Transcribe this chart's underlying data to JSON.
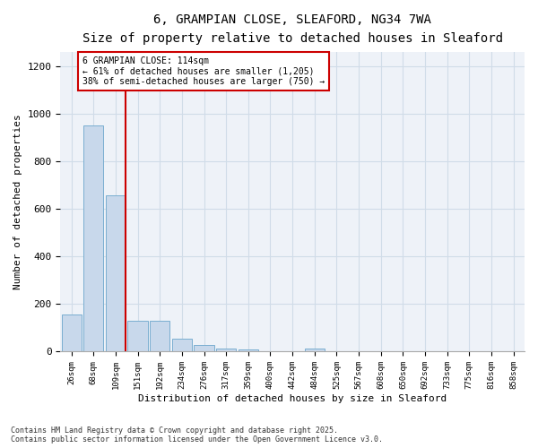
{
  "title_line1": "6, GRAMPIAN CLOSE, SLEAFORD, NG34 7WA",
  "title_line2": "Size of property relative to detached houses in Sleaford",
  "xlabel": "Distribution of detached houses by size in Sleaford",
  "ylabel": "Number of detached properties",
  "categories": [
    "26sqm",
    "68sqm",
    "109sqm",
    "151sqm",
    "192sqm",
    "234sqm",
    "276sqm",
    "317sqm",
    "359sqm",
    "400sqm",
    "442sqm",
    "484sqm",
    "525sqm",
    "567sqm",
    "608sqm",
    "650sqm",
    "692sqm",
    "733sqm",
    "775sqm",
    "816sqm",
    "858sqm"
  ],
  "values": [
    155,
    950,
    655,
    130,
    130,
    55,
    30,
    12,
    10,
    0,
    0,
    12,
    0,
    0,
    0,
    0,
    0,
    0,
    0,
    0,
    0
  ],
  "bar_color": "#c8d8eb",
  "bar_edge_color": "#7aaed0",
  "grid_color": "#d0dce8",
  "background_color": "#eef2f8",
  "annotation_text_line1": "6 GRAMPIAN CLOSE: 114sqm",
  "annotation_text_line2": "← 61% of detached houses are smaller (1,205)",
  "annotation_text_line3": "38% of semi-detached houses are larger (750) →",
  "vline_color": "#cc0000",
  "ylim": [
    0,
    1260
  ],
  "yticks": [
    0,
    200,
    400,
    600,
    800,
    1000,
    1200
  ],
  "footer_line1": "Contains HM Land Registry data © Crown copyright and database right 2025.",
  "footer_line2": "Contains public sector information licensed under the Open Government Licence v3.0.",
  "annotation_fontsize": 7.0,
  "title_fontsize1": 10,
  "title_fontsize2": 9,
  "ylabel_fontsize": 8,
  "xlabel_fontsize": 8,
  "xtick_fontsize": 6.5,
  "ytick_fontsize": 8,
  "footer_fontsize": 6.0
}
